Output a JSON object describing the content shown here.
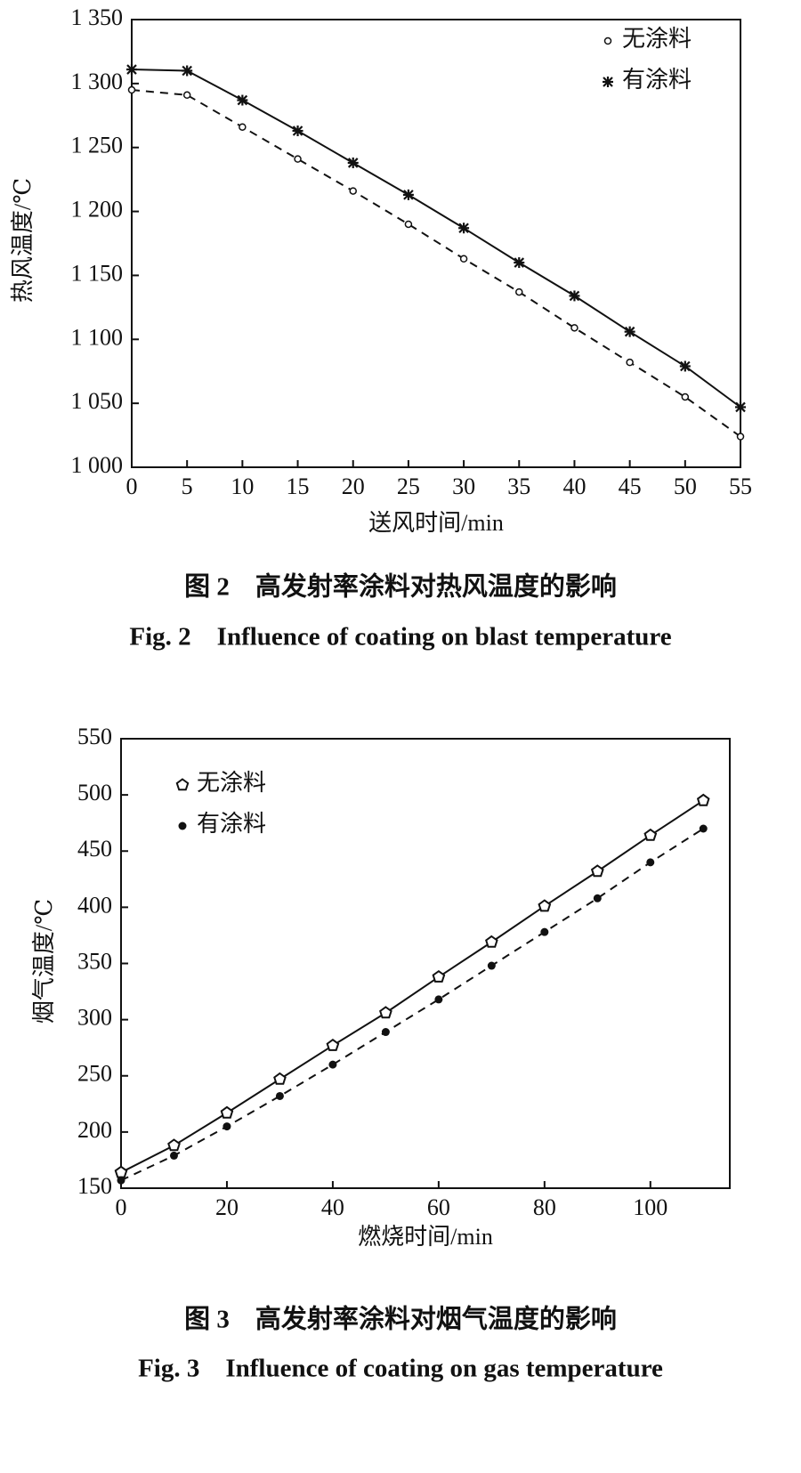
{
  "chart_data": [
    {
      "type": "line",
      "x_label": "送风时间/min",
      "y_label": "热风温度/℃",
      "caption_zh": "图 2　高发射率涂料对热风温度的影响",
      "caption_en": "Fig. 2　Influence of coating on blast temperature",
      "x": [
        0,
        5,
        10,
        15,
        20,
        25,
        30,
        35,
        40,
        45,
        50,
        55
      ],
      "xlim": [
        0,
        55
      ],
      "xticks": [
        0,
        5,
        10,
        15,
        20,
        25,
        30,
        35,
        40,
        45,
        50,
        55
      ],
      "ylim": [
        1000,
        1350
      ],
      "yticks": [
        {
          "value": 1000,
          "label": "1 000"
        },
        {
          "value": 1050,
          "label": "1 050"
        },
        {
          "value": 1100,
          "label": "1 100"
        },
        {
          "value": 1150,
          "label": "1 150"
        },
        {
          "value": 1200,
          "label": "1 200"
        },
        {
          "value": 1250,
          "label": "1 250"
        },
        {
          "value": 1300,
          "label": "1 300"
        },
        {
          "value": 1350,
          "label": "1 350"
        }
      ],
      "legend": "upper right",
      "series": [
        {
          "name": "无涂料",
          "color": "#111111",
          "marker": "circle",
          "line_style": "dashed",
          "values": [
            1295,
            1291,
            1266,
            1241,
            1216,
            1190,
            1163,
            1137,
            1109,
            1082,
            1055,
            1024
          ]
        },
        {
          "name": "有涂料",
          "color": "#111111",
          "marker": "asterisk",
          "line_style": "solid",
          "values": [
            1311,
            1310,
            1287,
            1263,
            1238,
            1213,
            1187,
            1160,
            1134,
            1106,
            1079,
            1047
          ]
        }
      ]
    },
    {
      "type": "line",
      "x_label": "燃烧时间/min",
      "y_label": "烟气温度/℃",
      "caption_zh": "图 3　高发射率涂料对烟气温度的影响",
      "caption_en": "Fig. 3　Influence of coating on gas temperature",
      "x": [
        0,
        10,
        20,
        30,
        40,
        50,
        60,
        70,
        80,
        90,
        100,
        110
      ],
      "xlim": [
        0,
        115
      ],
      "xticks": [
        0,
        20,
        40,
        60,
        80,
        100
      ],
      "ylim": [
        150,
        550
      ],
      "yticks": [
        150,
        200,
        250,
        300,
        350,
        400,
        450,
        500,
        550
      ],
      "legend": "upper left",
      "series": [
        {
          "name": "无涂料",
          "color": "#111111",
          "marker": "pentagon",
          "line_style": "solid",
          "values": [
            164,
            188,
            217,
            247,
            277,
            306,
            338,
            369,
            401,
            432,
            464,
            495
          ]
        },
        {
          "name": "有涂料",
          "color": "#111111",
          "marker": "dot",
          "line_style": "dashed",
          "values": [
            157,
            179,
            205,
            232,
            260,
            289,
            318,
            348,
            378,
            408,
            440,
            470
          ]
        }
      ]
    }
  ]
}
